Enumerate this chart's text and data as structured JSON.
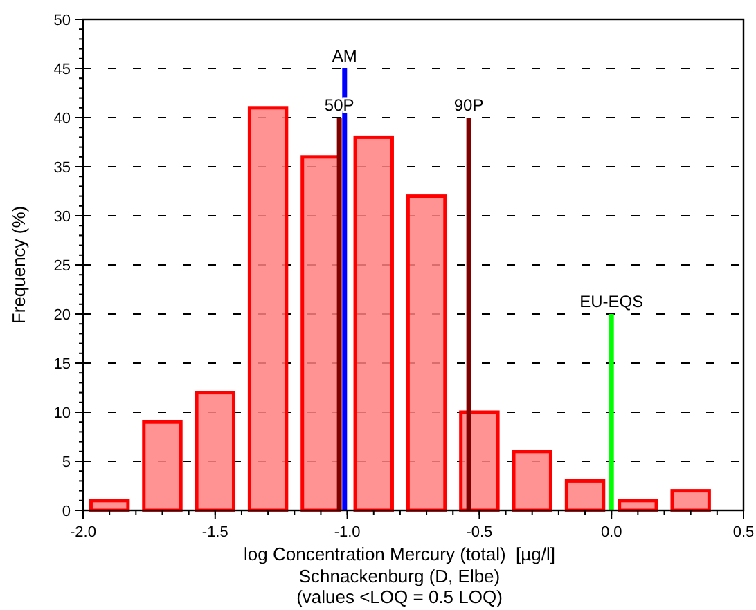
{
  "chart_data": {
    "type": "histogram",
    "xlabel": "log Concentration Mercury (total)  [µg/l]",
    "ylabel": "Frequency (%)",
    "annotations": [
      "Schnackenburg (D, Elbe)",
      "(values <LOQ = 0.5 LOQ)"
    ],
    "bins": [
      -2.0,
      -1.8,
      -1.6,
      -1.4,
      -1.2,
      -1.0,
      -0.8,
      -0.6,
      -0.4,
      -0.2,
      0.0,
      0.2,
      0.4
    ],
    "values": [
      1,
      9,
      12,
      41,
      36,
      38,
      32,
      10,
      6,
      3,
      1,
      2
    ],
    "color": "#ff8080",
    "series": [
      {
        "type": "line",
        "name": "50P",
        "color": "#800000",
        "x": [
          -1.03,
          -1.03
        ],
        "values": [
          0,
          40
        ]
      },
      {
        "type": "line",
        "name": "AM",
        "color": "#0000ff",
        "x": [
          -1.01,
          -1.01
        ],
        "values": [
          0,
          45
        ]
      },
      {
        "type": "line",
        "name": "90P",
        "color": "#800000",
        "x": [
          -0.54,
          -0.54
        ],
        "values": [
          0,
          40
        ]
      },
      {
        "type": "line",
        "name": "EU-EQS",
        "color": "#00ff00",
        "x": [
          0.0,
          0.0
        ],
        "values": [
          0,
          20
        ]
      }
    ],
    "xlim": [
      -2.0,
      0.5
    ],
    "ylim": [
      0,
      50
    ],
    "xticks": [
      {
        "value": -2.0,
        "label": "-2.0"
      },
      {
        "value": -1.5,
        "label": "-1.5"
      },
      {
        "value": -1.0,
        "label": "-1.0"
      },
      {
        "value": -0.5,
        "label": "-0.5"
      },
      {
        "value": 0,
        "label": "0.0"
      },
      {
        "value": 0.5,
        "label": "0.5"
      }
    ],
    "yticks": [
      0,
      5,
      10,
      15,
      20,
      25,
      30,
      35,
      40,
      45,
      50
    ],
    "grid": "y"
  }
}
